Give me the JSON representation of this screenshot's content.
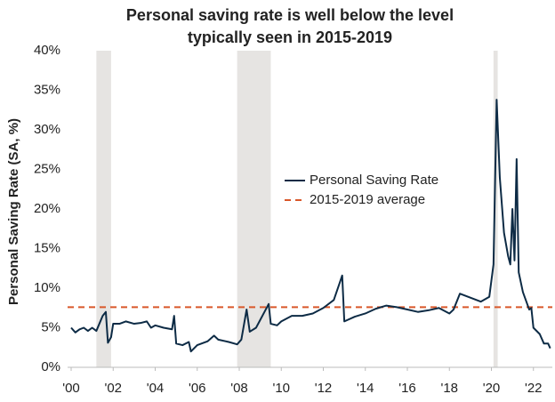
{
  "chart_data": {
    "type": "line",
    "title": [
      "Personal saving rate is well below the level",
      "typically seen in 2015-2019"
    ],
    "y_label": "Personal Saving Rate (SA, %)",
    "x": [
      2000.0,
      2000.2,
      2000.4,
      2000.6,
      2000.8,
      2001.0,
      2001.2,
      2001.5,
      2001.65,
      2001.75,
      2001.9,
      2002.0,
      2002.3,
      2002.6,
      2003.0,
      2003.3,
      2003.6,
      2003.8,
      2004.0,
      2004.4,
      2004.8,
      2004.9,
      2005.0,
      2005.3,
      2005.6,
      2005.7,
      2006.0,
      2006.5,
      2006.8,
      2007.0,
      2007.5,
      2007.9,
      2008.1,
      2008.35,
      2008.5,
      2008.8,
      2009.0,
      2009.4,
      2009.5,
      2009.8,
      2010.0,
      2010.5,
      2011.0,
      2011.5,
      2012.0,
      2012.5,
      2012.9,
      2013.0,
      2013.5,
      2014.0,
      2014.5,
      2015.0,
      2015.5,
      2016.0,
      2016.5,
      2017.0,
      2017.5,
      2018.0,
      2018.2,
      2018.5,
      2019.0,
      2019.5,
      2019.9,
      2020.1,
      2020.25,
      2020.4,
      2020.6,
      2020.8,
      2020.9,
      2021.0,
      2021.1,
      2021.2,
      2021.3,
      2021.5,
      2021.8,
      2021.9,
      2022.0,
      2022.3,
      2022.5,
      2022.7,
      2022.8
    ],
    "series": [
      {
        "name": "Personal Saving Rate",
        "color": "#0d2b45",
        "values": [
          5.0,
          4.4,
          4.8,
          5.0,
          4.6,
          5.0,
          4.6,
          6.5,
          7.0,
          3.1,
          3.8,
          5.5,
          5.5,
          5.8,
          5.5,
          5.6,
          5.8,
          5.0,
          5.3,
          5.0,
          4.8,
          6.5,
          3.0,
          2.8,
          3.2,
          2.0,
          2.8,
          3.3,
          4.0,
          3.5,
          3.2,
          2.9,
          3.5,
          7.3,
          4.5,
          5.0,
          6.0,
          8.0,
          5.5,
          5.3,
          5.8,
          6.5,
          6.5,
          6.8,
          7.5,
          8.5,
          11.6,
          5.8,
          6.4,
          6.8,
          7.4,
          7.8,
          7.6,
          7.3,
          7.0,
          7.2,
          7.5,
          6.8,
          7.3,
          9.3,
          8.8,
          8.3,
          8.9,
          13.0,
          33.8,
          24.0,
          17.0,
          14.0,
          13.0,
          20.0,
          13.5,
          26.3,
          12.0,
          9.5,
          7.3,
          7.5,
          5.0,
          4.2,
          3.0,
          3.0,
          2.4
        ]
      }
    ],
    "reference_lines": [
      {
        "name": "2015-2019 average",
        "color": "#d9572a",
        "value": 7.6
      }
    ],
    "shaded_periods": [
      [
        2001.2,
        2001.9
      ],
      [
        2007.9,
        2009.5
      ],
      [
        2020.1,
        2020.3
      ]
    ],
    "shade_color": "#e6e4e2",
    "xlim": [
      2000,
      2022.9
    ],
    "xticks": [
      {
        "value": 2000,
        "label": "'00"
      },
      {
        "value": 2002,
        "label": "'02"
      },
      {
        "value": 2004,
        "label": "'04"
      },
      {
        "value": 2006,
        "label": "'06"
      },
      {
        "value": 2008,
        "label": "'08"
      },
      {
        "value": 2010,
        "label": "'10"
      },
      {
        "value": 2012,
        "label": "'12"
      },
      {
        "value": 2014,
        "label": "'14"
      },
      {
        "value": 2016,
        "label": "'16"
      },
      {
        "value": 2018,
        "label": "'18"
      },
      {
        "value": 2020,
        "label": "'20"
      },
      {
        "value": 2022,
        "label": "'22"
      }
    ],
    "ylim": [
      0,
      40
    ],
    "yticks": [
      {
        "value": 0,
        "label": "0%"
      },
      {
        "value": 5,
        "label": "5%"
      },
      {
        "value": 10,
        "label": "10%"
      },
      {
        "value": 15,
        "label": "15%"
      },
      {
        "value": 20,
        "label": "20%"
      },
      {
        "value": 25,
        "label": "25%"
      },
      {
        "value": 30,
        "label": "30%"
      },
      {
        "value": 35,
        "label": "35%"
      },
      {
        "value": 40,
        "label": "40%"
      }
    ]
  }
}
